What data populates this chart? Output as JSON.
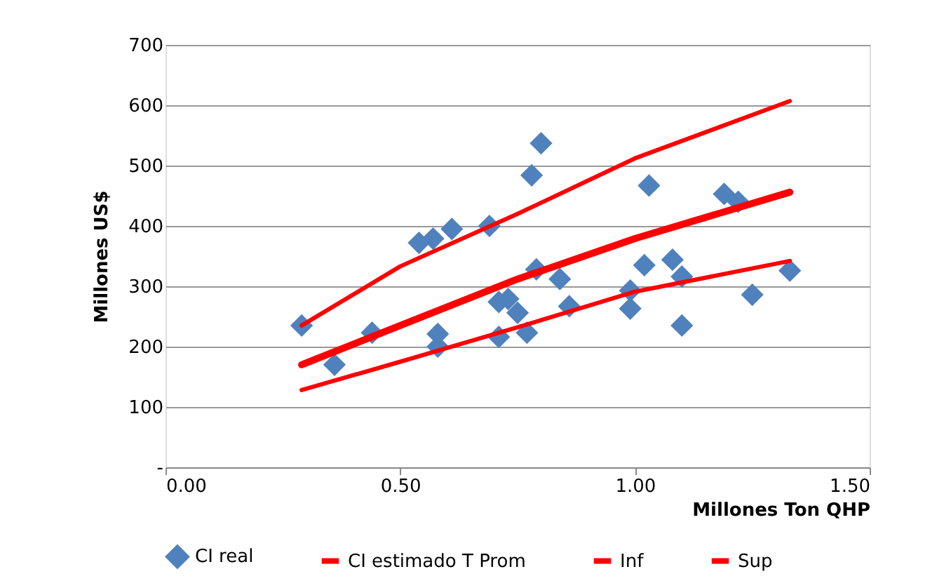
{
  "chart_data": {
    "type": "scatter",
    "xlabel": "Millones Ton QHP",
    "ylabel": "Millones US$",
    "xlim": [
      0,
      1.5
    ],
    "xticks": [
      {
        "value": 0,
        "label": "0.00"
      },
      {
        "value": 0.5,
        "label": "0.50"
      },
      {
        "value": 1,
        "label": "1.00"
      },
      {
        "value": 1.5,
        "label": "1.50"
      }
    ],
    "ylim": [
      0,
      700
    ],
    "yticks": [
      {
        "value": 0,
        "label": "-"
      },
      100,
      200,
      300,
      400,
      500,
      600,
      700
    ],
    "grid": "y",
    "legend": "bottom",
    "series": [
      {
        "name": "CI real",
        "marker": "diamond",
        "color": "#4f81bd",
        "x": [
          0.29,
          0.36,
          0.44,
          0.54,
          0.57,
          0.61,
          0.69,
          0.78,
          0.8,
          0.79,
          0.84,
          0.86,
          0.71,
          0.73,
          0.75,
          0.71,
          0.77,
          0.58,
          0.58,
          1.03,
          1.19,
          1.22,
          1.02,
          1.08,
          1.1,
          0.99,
          0.99,
          1.1,
          1.25,
          1.33
        ],
        "values": [
          235,
          170,
          223,
          372,
          379,
          395,
          400,
          484,
          537,
          328,
          312,
          267,
          274,
          279,
          256,
          216,
          223,
          221,
          200,
          467,
          453,
          440,
          335,
          344,
          316,
          293,
          263,
          235,
          286,
          326
        ]
      },
      {
        "name": "CI estimado T Prom",
        "type": "line",
        "color": "#ff0000",
        "x": [
          0.29,
          0.5,
          0.75,
          1.0,
          1.33
        ],
        "values": [
          170,
          235,
          312,
          379,
          456
        ]
      },
      {
        "name": "Inf",
        "type": "line",
        "color": "#ff0000",
        "x": [
          0.29,
          0.5,
          0.75,
          1.0,
          1.33
        ],
        "values": [
          128,
          175,
          232,
          291,
          342
        ]
      },
      {
        "name": "Sup",
        "type": "line",
        "color": "#ff0000",
        "x": [
          0.29,
          0.5,
          0.75,
          1.0,
          1.33
        ],
        "values": [
          235,
          333,
          420,
          512,
          607
        ]
      }
    ]
  }
}
